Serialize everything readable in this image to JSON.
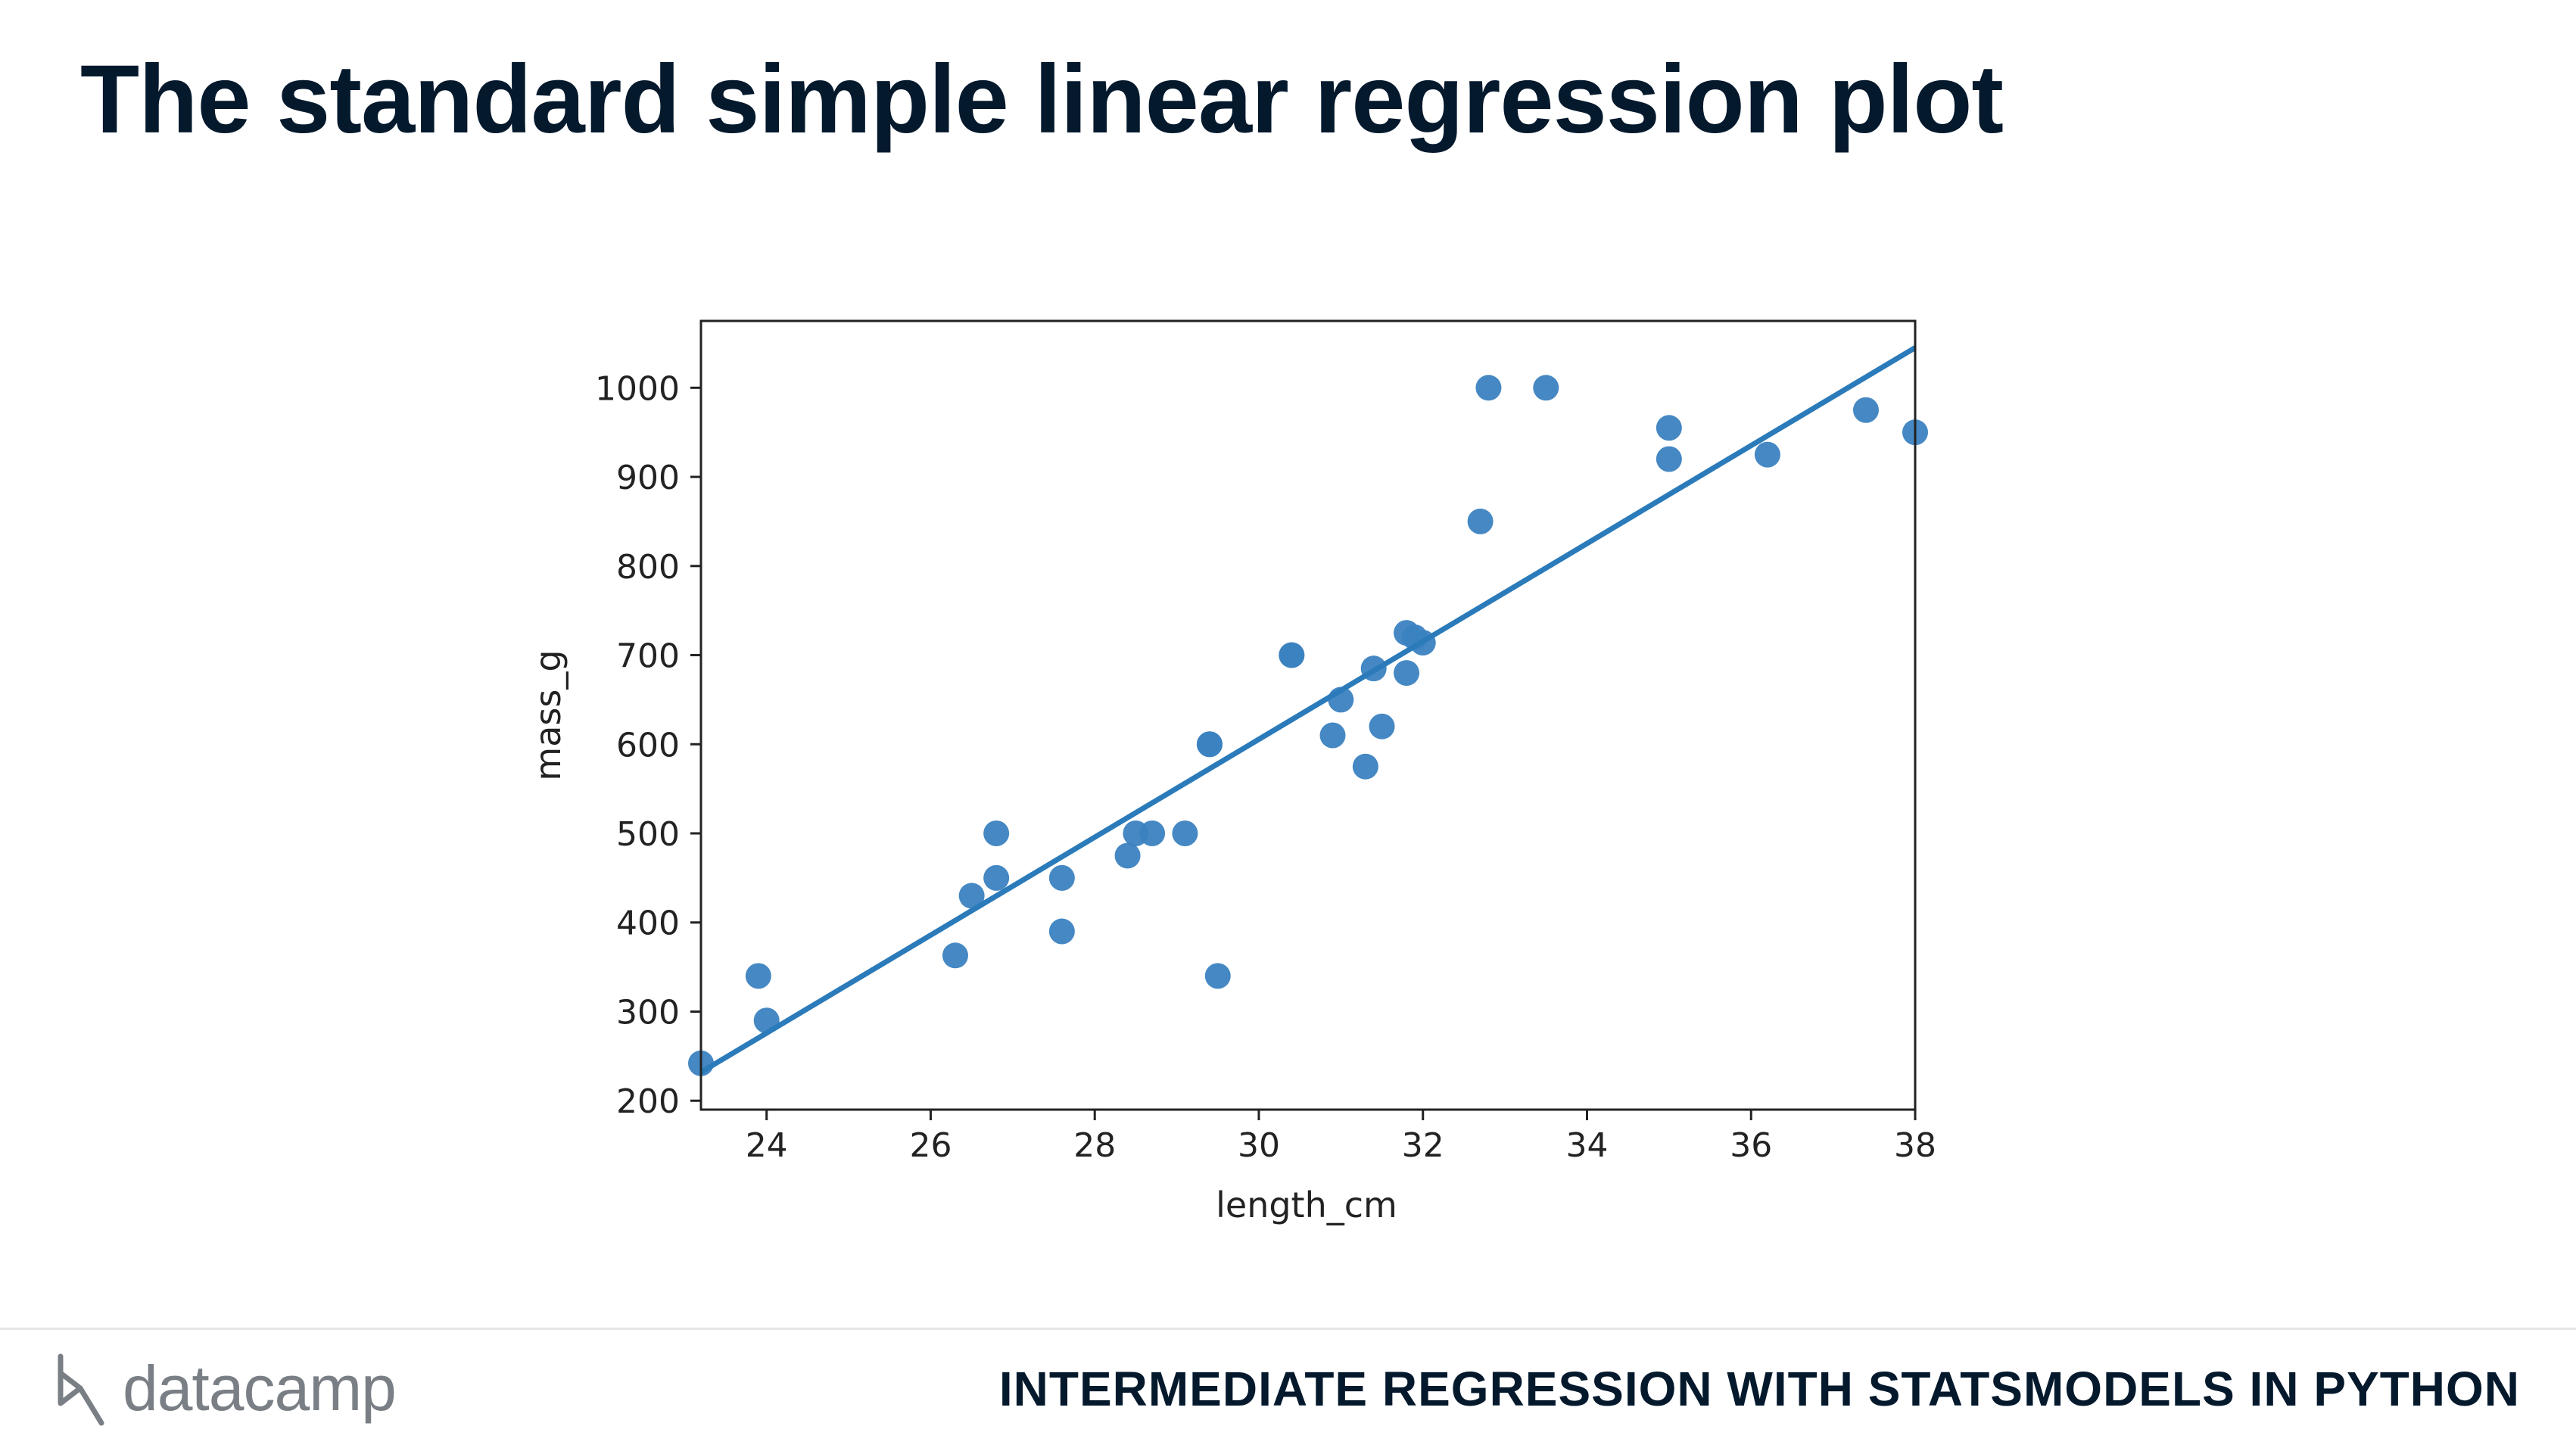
{
  "slide": {
    "title": "The standard simple linear regression plot",
    "course": "INTERMEDIATE REGRESSION WITH STATSMODELS IN PYTHON",
    "logo_text": "datacamp"
  },
  "chart_data": {
    "type": "scatter",
    "xlabel": "length_cm",
    "ylabel": "mass_g",
    "xlim": [
      23.2,
      38.0
    ],
    "ylim": [
      190,
      1075
    ],
    "x_ticks": [
      24,
      26,
      28,
      30,
      32,
      34,
      36,
      38
    ],
    "y_ticks": [
      200,
      300,
      400,
      500,
      600,
      700,
      800,
      900,
      1000
    ],
    "grid": false,
    "point_color": "#3b82c0",
    "line_color": "#2b7bba",
    "points": [
      {
        "x": 23.2,
        "y": 242
      },
      {
        "x": 23.9,
        "y": 340
      },
      {
        "x": 24.0,
        "y": 290
      },
      {
        "x": 26.3,
        "y": 363
      },
      {
        "x": 26.5,
        "y": 430
      },
      {
        "x": 26.8,
        "y": 450
      },
      {
        "x": 26.8,
        "y": 500
      },
      {
        "x": 27.6,
        "y": 390
      },
      {
        "x": 27.6,
        "y": 450
      },
      {
        "x": 28.4,
        "y": 475
      },
      {
        "x": 28.5,
        "y": 500
      },
      {
        "x": 28.7,
        "y": 500
      },
      {
        "x": 29.1,
        "y": 500
      },
      {
        "x": 29.4,
        "y": 600
      },
      {
        "x": 29.4,
        "y": 600
      },
      {
        "x": 29.5,
        "y": 340
      },
      {
        "x": 30.4,
        "y": 700
      },
      {
        "x": 30.4,
        "y": 700
      },
      {
        "x": 30.9,
        "y": 610
      },
      {
        "x": 31.0,
        "y": 650
      },
      {
        "x": 31.3,
        "y": 575
      },
      {
        "x": 31.4,
        "y": 685
      },
      {
        "x": 31.5,
        "y": 620
      },
      {
        "x": 31.8,
        "y": 680
      },
      {
        "x": 31.8,
        "y": 725
      },
      {
        "x": 31.9,
        "y": 720
      },
      {
        "x": 32.0,
        "y": 714
      },
      {
        "x": 32.7,
        "y": 850
      },
      {
        "x": 32.8,
        "y": 1000
      },
      {
        "x": 33.5,
        "y": 1000
      },
      {
        "x": 35.0,
        "y": 920
      },
      {
        "x": 35.0,
        "y": 955
      },
      {
        "x": 36.2,
        "y": 925
      },
      {
        "x": 37.4,
        "y": 975
      },
      {
        "x": 38.0,
        "y": 950
      }
    ],
    "regression_line": {
      "x": [
        23.2,
        38.0
      ],
      "y": [
        232,
        1045
      ]
    }
  }
}
